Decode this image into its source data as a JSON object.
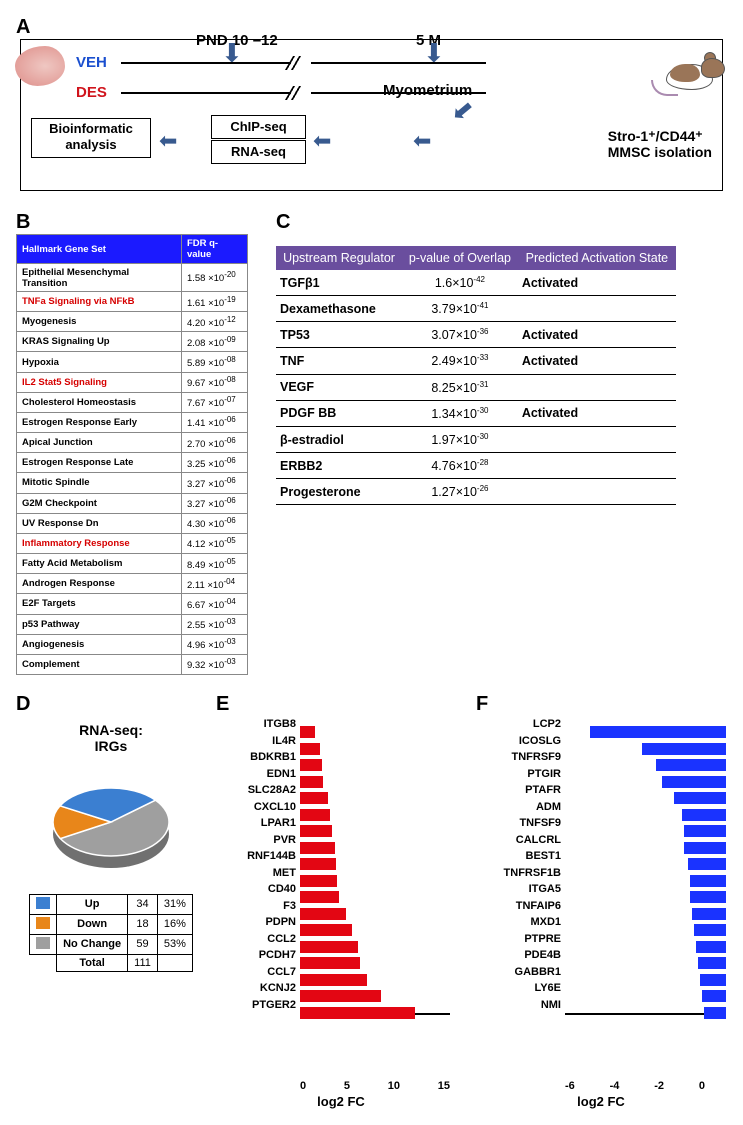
{
  "panelA": {
    "label": "A",
    "veh": "VEH",
    "des": "DES",
    "pnd": "PND 10 –12",
    "m5": "5 M",
    "myo": "Myometrium",
    "mmsc": "Stro-1⁺/CD44⁺\nMMSC isolation",
    "bioinf": "Bioinformatic\nanalysis",
    "chip": "ChIP-seq",
    "rna": "RNA-seq"
  },
  "panelB": {
    "label": "B",
    "headers": [
      "Hallmark Gene Set",
      "FDR q-value"
    ],
    "rows": [
      {
        "name": "Epithelial Mesenchymal Transition",
        "red": false,
        "m": "1.58",
        "e": "-20"
      },
      {
        "name": "TNFa Signaling via NFkB",
        "red": true,
        "m": "1.61",
        "e": "-19"
      },
      {
        "name": "Myogenesis",
        "red": false,
        "m": "4.20",
        "e": "-12"
      },
      {
        "name": "KRAS Signaling Up",
        "red": false,
        "m": "2.08",
        "e": "-09"
      },
      {
        "name": "Hypoxia",
        "red": false,
        "m": "5.89",
        "e": "-08"
      },
      {
        "name": "IL2 Stat5 Signaling",
        "red": true,
        "m": "9.67",
        "e": "-08"
      },
      {
        "name": "Cholesterol Homeostasis",
        "red": false,
        "m": "7.67",
        "e": "-07"
      },
      {
        "name": "Estrogen Response Early",
        "red": false,
        "m": "1.41",
        "e": "-06"
      },
      {
        "name": "Apical Junction",
        "red": false,
        "m": "2.70",
        "e": "-06"
      },
      {
        "name": "Estrogen Response Late",
        "red": false,
        "m": "3.25",
        "e": "-06"
      },
      {
        "name": "Mitotic Spindle",
        "red": false,
        "m": "3.27",
        "e": "-06"
      },
      {
        "name": "G2M Checkpoint",
        "red": false,
        "m": "3.27",
        "e": "-06"
      },
      {
        "name": "UV Response Dn",
        "red": false,
        "m": "4.30",
        "e": "-06"
      },
      {
        "name": "Inflammatory Response",
        "red": true,
        "m": "4.12",
        "e": "-05"
      },
      {
        "name": "Fatty Acid Metabolism",
        "red": false,
        "m": "8.49",
        "e": "-05"
      },
      {
        "name": "Androgen Response",
        "red": false,
        "m": "2.11",
        "e": "-04"
      },
      {
        "name": "E2F Targets",
        "red": false,
        "m": "6.67",
        "e": "-04"
      },
      {
        "name": "p53 Pathway",
        "red": false,
        "m": "2.55",
        "e": "-03"
      },
      {
        "name": "Angiogenesis",
        "red": false,
        "m": "4.96",
        "e": "-03"
      },
      {
        "name": "Complement",
        "red": false,
        "m": "9.32",
        "e": "-03"
      }
    ]
  },
  "panelC": {
    "label": "C",
    "headers": [
      "Upstream Regulator",
      "p-value of Overlap",
      "Predicted Activation State"
    ],
    "rows": [
      {
        "name": "TGFβ1",
        "m": "1.6",
        "e": "-42",
        "state": "Activated"
      },
      {
        "name": "Dexamethasone",
        "m": "3.79",
        "e": "-41",
        "state": ""
      },
      {
        "name": "TP53",
        "m": "3.07",
        "e": "-36",
        "state": "Activated"
      },
      {
        "name": "TNF",
        "m": "2.49",
        "e": "-33",
        "state": "Activated"
      },
      {
        "name": "VEGF",
        "m": "8.25",
        "e": "-31",
        "state": ""
      },
      {
        "name": "PDGF BB",
        "m": "1.34",
        "e": "-30",
        "state": "Activated"
      },
      {
        "name": "β-estradiol",
        "m": "1.97",
        "e": "-30",
        "state": ""
      },
      {
        "name": "ERBB2",
        "m": "4.76",
        "e": "-28",
        "state": ""
      },
      {
        "name": "Progesterone",
        "m": "1.27",
        "e": "-26",
        "state": ""
      }
    ]
  },
  "panelD": {
    "label": "D",
    "title": "RNA-seq:\nIRGs",
    "slices": {
      "Up": 31,
      "Down": 16,
      "NoChange": 53
    },
    "colors": {
      "Up": "#3b7fd1",
      "Down": "#e8861a",
      "NoChange": "#9f9f9f"
    },
    "legend": [
      {
        "key": "Up",
        "n": 34,
        "pct": "31%",
        "sw": "sw-up"
      },
      {
        "key": "Down",
        "n": 18,
        "pct": "16%",
        "sw": "sw-dn"
      },
      {
        "key": "No Change",
        "n": 59,
        "pct": "53%",
        "sw": "sw-nc"
      },
      {
        "key": "Total",
        "n": 111,
        "pct": ""
      }
    ]
  },
  "panelE": {
    "label": "E",
    "max": 15,
    "ticks": [
      "0",
      "5",
      "10",
      "15"
    ],
    "color": "#e30613",
    "xlabel": "log2 FC",
    "bars": [
      {
        "g": "ITGB8",
        "v": 1.5
      },
      {
        "g": "IL4R",
        "v": 2.0
      },
      {
        "g": "BDKRB1",
        "v": 2.2
      },
      {
        "g": "EDN1",
        "v": 2.3
      },
      {
        "g": "SLC28A2",
        "v": 2.8
      },
      {
        "g": "CXCL10",
        "v": 3.0
      },
      {
        "g": "LPAR1",
        "v": 3.2
      },
      {
        "g": "PVR",
        "v": 3.5
      },
      {
        "g": "RNF144B",
        "v": 3.6
      },
      {
        "g": "MET",
        "v": 3.7
      },
      {
        "g": "CD40",
        "v": 3.9
      },
      {
        "g": "F3",
        "v": 4.6
      },
      {
        "g": "PDPN",
        "v": 5.2
      },
      {
        "g": "CCL2",
        "v": 5.8
      },
      {
        "g": "PCDH7",
        "v": 6.0
      },
      {
        "g": "CCL7",
        "v": 6.7
      },
      {
        "g": "KCNJ2",
        "v": 8.1
      },
      {
        "g": "PTGER2",
        "v": 11.5
      }
    ]
  },
  "panelF": {
    "label": "F",
    "min": -7,
    "max": 0,
    "ticks": [
      "-6",
      "-4",
      "-2",
      "0"
    ],
    "color": "#1a33ff",
    "xlabel": "log2 FC",
    "bars": [
      {
        "g": "LCP2",
        "v": -6.8
      },
      {
        "g": "ICOSLG",
        "v": -4.2
      },
      {
        "g": "TNFRSF9",
        "v": -3.5
      },
      {
        "g": "PTGIR",
        "v": -3.2
      },
      {
        "g": "PTAFR",
        "v": -2.6
      },
      {
        "g": "ADM",
        "v": -2.2
      },
      {
        "g": "TNFSF9",
        "v": -2.1
      },
      {
        "g": "CALCRL",
        "v": -2.1
      },
      {
        "g": "BEST1",
        "v": -1.9
      },
      {
        "g": "TNFRSF1B",
        "v": -1.8
      },
      {
        "g": "ITGA5",
        "v": -1.8
      },
      {
        "g": "TNFAIP6",
        "v": -1.7
      },
      {
        "g": "MXD1",
        "v": -1.6
      },
      {
        "g": "PTPRE",
        "v": -1.5
      },
      {
        "g": "PDE4B",
        "v": -1.4
      },
      {
        "g": "GABBR1",
        "v": -1.3
      },
      {
        "g": "LY6E",
        "v": -1.2
      },
      {
        "g": "NMI",
        "v": -1.1
      }
    ]
  }
}
